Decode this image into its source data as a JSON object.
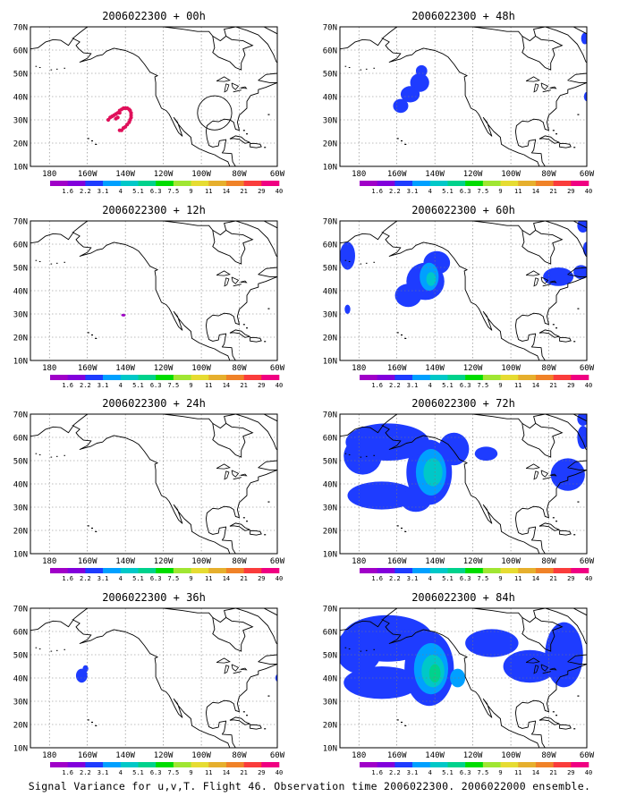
{
  "caption": "Signal Variance for u,v,T. Flight 46. Observation time 2006022300. 2006022000 ensemble.",
  "lon_labels": [
    "180",
    "160W",
    "140W",
    "120W",
    "100W",
    "80W",
    "60W"
  ],
  "lat_labels": [
    "10N",
    "20N",
    "30N",
    "40N",
    "50N",
    "60N",
    "70N"
  ],
  "lon_range": [
    -190,
    -60
  ],
  "lat_range": [
    10,
    70
  ],
  "colorbar": {
    "labels": [
      "1.6",
      "2.2",
      "3.1",
      "4",
      "5.1",
      "6.3",
      "7.5",
      "9",
      "11",
      "14",
      "21",
      "29",
      "40"
    ],
    "colors": [
      "#a000c8",
      "#8200dc",
      "#1e3cff",
      "#00a0ff",
      "#00c8c8",
      "#00d28c",
      "#00dc00",
      "#a0e632",
      "#e6dc32",
      "#e6af2d",
      "#f08228",
      "#fa3c3c",
      "#f00082"
    ]
  },
  "panels": [
    {
      "title": "2006022300 + 00h",
      "features": [
        {
          "kind": "obs_dots",
          "color": "#e0105a",
          "points": [
            [
              -149,
              30
            ],
            [
              -148,
              31
            ],
            [
              -147,
              31.5
            ],
            [
              -146,
              32
            ],
            [
              -145,
              32.5
            ],
            [
              -144,
              33
            ],
            [
              -143,
              34
            ],
            [
              -142,
              34.5
            ],
            [
              -141,
              35
            ],
            [
              -140,
              35
            ],
            [
              -139,
              35
            ],
            [
              -138,
              34.5
            ],
            [
              -137.5,
              34
            ],
            [
              -137,
              33
            ],
            [
              -137,
              32
            ],
            [
              -137,
              31
            ],
            [
              -137.5,
              30
            ],
            [
              -138,
              29
            ],
            [
              -139,
              28
            ],
            [
              -140,
              27
            ],
            [
              -141,
              26.5
            ],
            [
              -142,
              25.5
            ],
            [
              -143,
              25.5
            ],
            [
              -145,
              30.5
            ],
            [
              -144,
              31
            ],
            [
              -143,
              33
            ]
          ]
        },
        {
          "kind": "circle",
          "center": [
            -93,
            33
          ],
          "radius_deg": 9
        }
      ]
    },
    {
      "title": "2006022300 + 48h",
      "features": [
        {
          "kind": "blob",
          "center": [
            -148,
            46
          ],
          "rx": 5,
          "ry": 4,
          "level": 1
        },
        {
          "kind": "blob",
          "center": [
            -153,
            41
          ],
          "rx": 5,
          "ry": 3.5,
          "level": 1
        },
        {
          "kind": "blob",
          "center": [
            -158,
            36
          ],
          "rx": 4,
          "ry": 3,
          "level": 1
        },
        {
          "kind": "blob",
          "center": [
            -147,
            51
          ],
          "rx": 3,
          "ry": 2.5,
          "level": 1
        },
        {
          "kind": "blob",
          "center": [
            -61,
            65
          ],
          "rx": 2,
          "ry": 2.5,
          "level": 1
        },
        {
          "kind": "blob",
          "center": [
            -60,
            40
          ],
          "rx": 1.5,
          "ry": 2,
          "level": 1
        }
      ]
    },
    {
      "title": "2006022300 + 12h",
      "features": [
        {
          "kind": "blob",
          "center": [
            -141,
            29.5
          ],
          "rx": 1.2,
          "ry": 0.6,
          "level": 0
        }
      ]
    },
    {
      "title": "2006022300 + 60h",
      "features": [
        {
          "kind": "blob",
          "center": [
            -145,
            44
          ],
          "rx": 10,
          "ry": 8,
          "level": 1
        },
        {
          "kind": "blob",
          "center": [
            -139,
            52
          ],
          "rx": 7,
          "ry": 5,
          "level": 1
        },
        {
          "kind": "blob",
          "center": [
            -154,
            38
          ],
          "rx": 7,
          "ry": 5,
          "level": 1
        },
        {
          "kind": "blob",
          "center": [
            -143,
            46
          ],
          "rx": 5,
          "ry": 6,
          "level": 2
        },
        {
          "kind": "blob",
          "center": [
            -142,
            45
          ],
          "rx": 2.5,
          "ry": 3,
          "level": 3
        },
        {
          "kind": "blob",
          "center": [
            -186,
            55
          ],
          "rx": 4,
          "ry": 6,
          "level": 1
        },
        {
          "kind": "blob",
          "center": [
            -186,
            32
          ],
          "rx": 1.5,
          "ry": 2,
          "level": 1
        },
        {
          "kind": "blob",
          "center": [
            -75,
            46
          ],
          "rx": 8,
          "ry": 4,
          "level": 1
        },
        {
          "kind": "blob",
          "center": [
            -63,
            48
          ],
          "rx": 4,
          "ry": 3,
          "level": 1
        },
        {
          "kind": "blob",
          "center": [
            -62,
            68
          ],
          "rx": 3,
          "ry": 3,
          "level": 1
        },
        {
          "kind": "blob",
          "center": [
            -60,
            58
          ],
          "rx": 2,
          "ry": 3,
          "level": 1
        }
      ]
    },
    {
      "title": "2006022300 + 24h",
      "features": []
    },
    {
      "title": "2006022300 + 72h",
      "features": [
        {
          "kind": "blob",
          "center": [
            -143,
            45
          ],
          "rx": 12,
          "ry": 14,
          "level": 1
        },
        {
          "kind": "blob",
          "center": [
            -165,
            58
          ],
          "rx": 22,
          "ry": 8,
          "level": 1
        },
        {
          "kind": "blob",
          "center": [
            -178,
            52
          ],
          "rx": 10,
          "ry": 8,
          "level": 1
        },
        {
          "kind": "blob",
          "center": [
            -168,
            35
          ],
          "rx": 18,
          "ry": 6,
          "level": 1
        },
        {
          "kind": "blob",
          "center": [
            -130,
            55
          ],
          "rx": 8,
          "ry": 7,
          "level": 1
        },
        {
          "kind": "blob",
          "center": [
            -113,
            53
          ],
          "rx": 6,
          "ry": 3,
          "level": 1
        },
        {
          "kind": "blob",
          "center": [
            -150,
            33
          ],
          "rx": 8,
          "ry": 5,
          "level": 1
        },
        {
          "kind": "blob",
          "center": [
            -142,
            45
          ],
          "rx": 8,
          "ry": 10,
          "level": 2
        },
        {
          "kind": "blob",
          "center": [
            -141,
            45
          ],
          "rx": 5,
          "ry": 6,
          "level": 3
        },
        {
          "kind": "blob",
          "center": [
            -70,
            44
          ],
          "rx": 9,
          "ry": 7,
          "level": 1
        },
        {
          "kind": "blob",
          "center": [
            -62,
            60
          ],
          "rx": 3,
          "ry": 5,
          "level": 1
        },
        {
          "kind": "blob",
          "center": [
            -62,
            68
          ],
          "rx": 3,
          "ry": 3,
          "level": 1
        }
      ]
    },
    {
      "title": "2006022300 + 36h",
      "features": [
        {
          "kind": "blob",
          "center": [
            -163,
            41
          ],
          "rx": 3,
          "ry": 3,
          "level": 1
        },
        {
          "kind": "blob",
          "center": [
            -161,
            44
          ],
          "rx": 1.5,
          "ry": 1.5,
          "level": 1
        },
        {
          "kind": "blob",
          "center": [
            -60,
            40
          ],
          "rx": 1,
          "ry": 1.5,
          "level": 1
        }
      ]
    },
    {
      "title": "2006022300 + 84h",
      "features": [
        {
          "kind": "blob",
          "center": [
            -143,
            44
          ],
          "rx": 13,
          "ry": 16,
          "level": 1
        },
        {
          "kind": "blob",
          "center": [
            -165,
            57
          ],
          "rx": 24,
          "ry": 10,
          "level": 1
        },
        {
          "kind": "blob",
          "center": [
            -168,
            38
          ],
          "rx": 20,
          "ry": 7,
          "level": 1
        },
        {
          "kind": "blob",
          "center": [
            -180,
            52
          ],
          "rx": 12,
          "ry": 10,
          "level": 1
        },
        {
          "kind": "blob",
          "center": [
            -110,
            55
          ],
          "rx": 14,
          "ry": 6,
          "level": 1
        },
        {
          "kind": "blob",
          "center": [
            -90,
            45
          ],
          "rx": 14,
          "ry": 7,
          "level": 1
        },
        {
          "kind": "blob",
          "center": [
            -72,
            50
          ],
          "rx": 10,
          "ry": 14,
          "level": 1
        },
        {
          "kind": "blob",
          "center": [
            -142,
            44
          ],
          "rx": 9,
          "ry": 11,
          "level": 2
        },
        {
          "kind": "blob",
          "center": [
            -141,
            43
          ],
          "rx": 6,
          "ry": 7,
          "level": 3
        },
        {
          "kind": "blob",
          "center": [
            -140,
            42
          ],
          "rx": 3,
          "ry": 4,
          "level": 4
        },
        {
          "kind": "blob",
          "center": [
            -128,
            40
          ],
          "rx": 4,
          "ry": 4,
          "level": 2
        }
      ]
    }
  ]
}
